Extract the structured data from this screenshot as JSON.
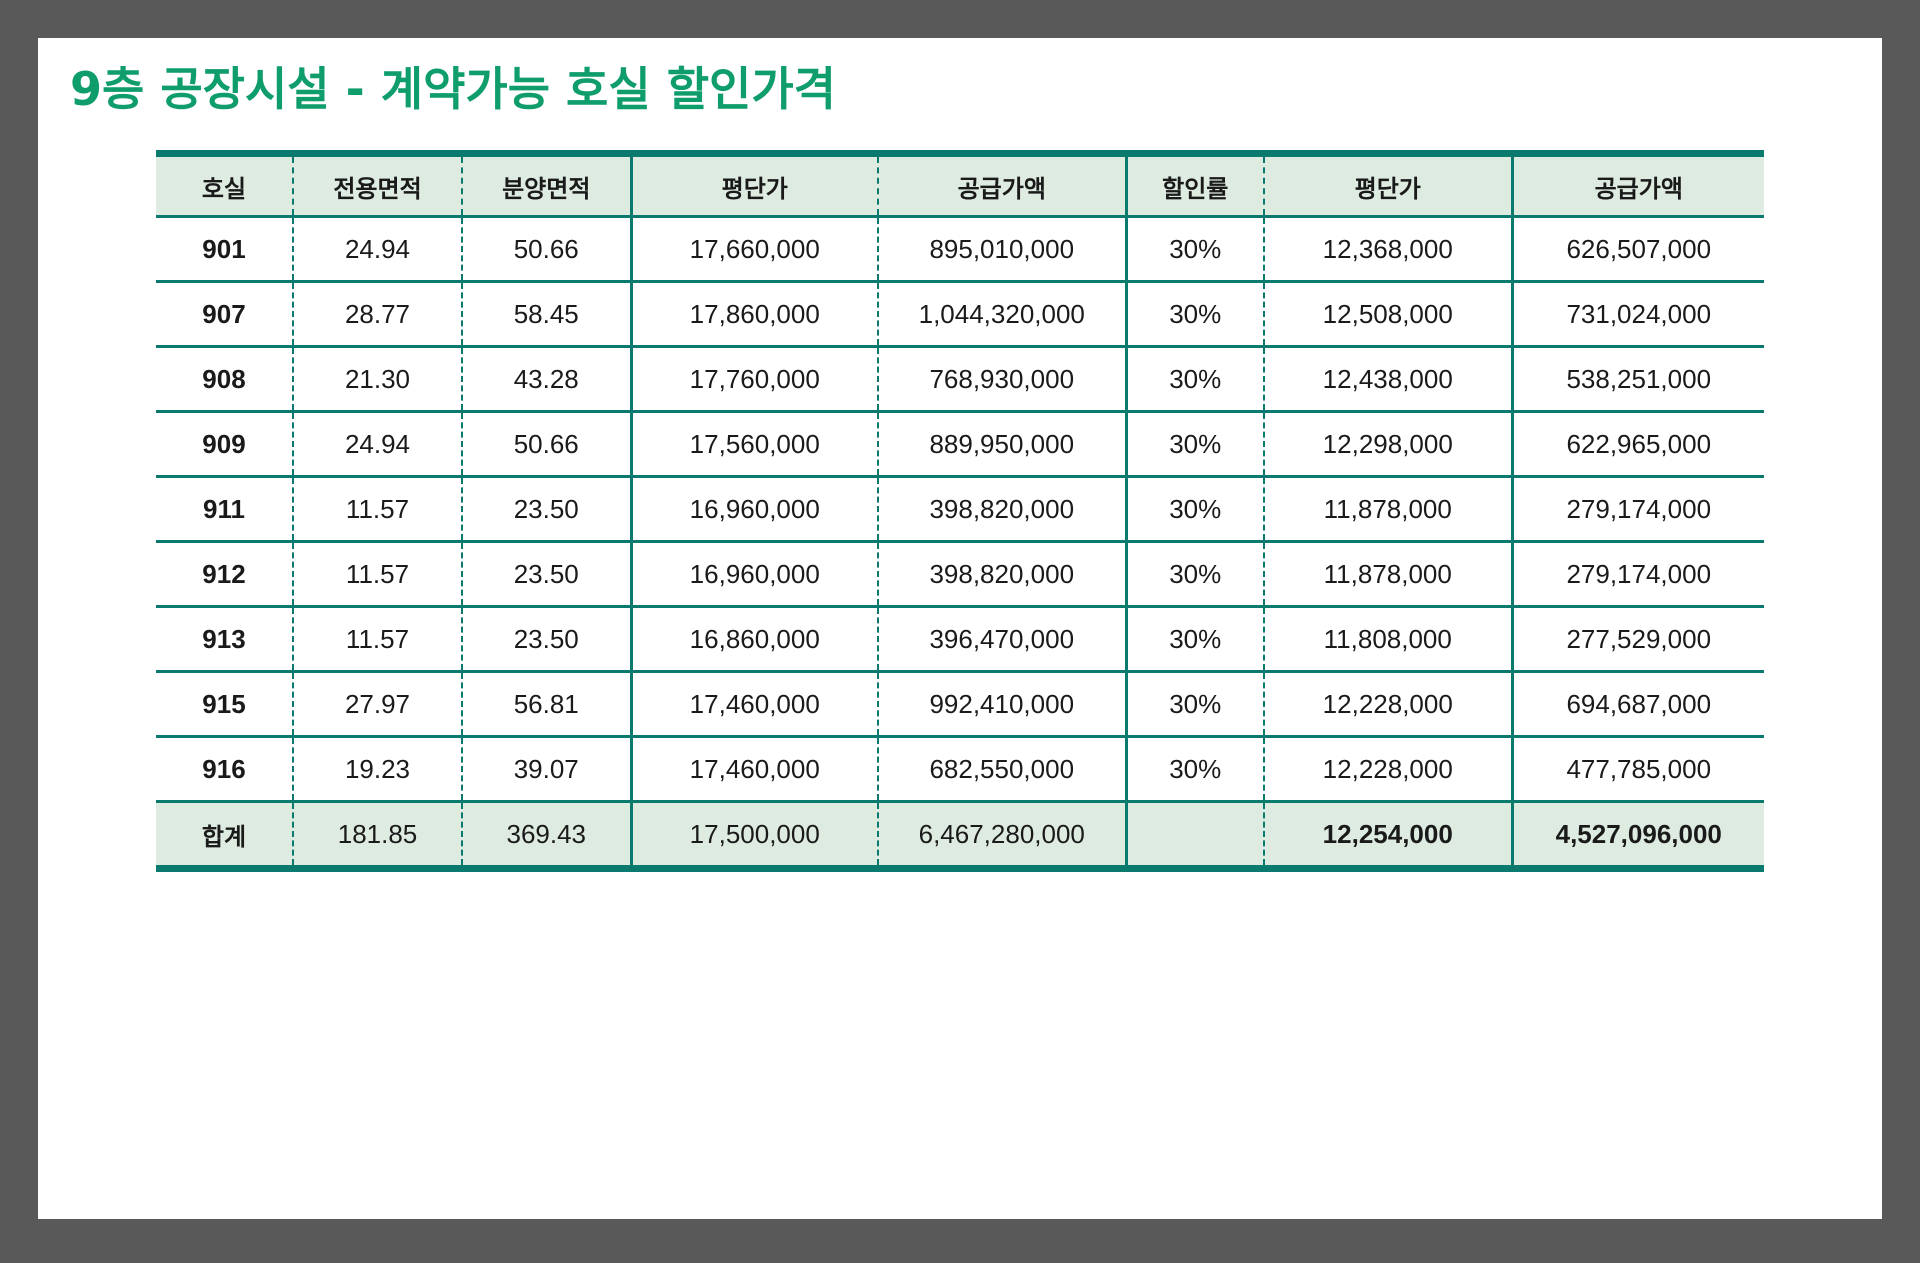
{
  "title": "9층 공장시설 - 계약가능 호실 할인가격",
  "colors": {
    "title": "#0f9d6b",
    "rule": "#0b7a6e",
    "header_bg": "#deebe0",
    "frame": "#595959"
  },
  "table": {
    "columns": [
      "호실",
      "전용면적",
      "분양면적",
      "평단가",
      "공급가액",
      "할인률",
      "평단가",
      "공급가액"
    ],
    "rows": [
      [
        "901",
        "24.94",
        "50.66",
        "17,660,000",
        "895,010,000",
        "30%",
        "12,368,000",
        "626,507,000"
      ],
      [
        "907",
        "28.77",
        "58.45",
        "17,860,000",
        "1,044,320,000",
        "30%",
        "12,508,000",
        "731,024,000"
      ],
      [
        "908",
        "21.30",
        "43.28",
        "17,760,000",
        "768,930,000",
        "30%",
        "12,438,000",
        "538,251,000"
      ],
      [
        "909",
        "24.94",
        "50.66",
        "17,560,000",
        "889,950,000",
        "30%",
        "12,298,000",
        "622,965,000"
      ],
      [
        "911",
        "11.57",
        "23.50",
        "16,960,000",
        "398,820,000",
        "30%",
        "11,878,000",
        "279,174,000"
      ],
      [
        "912",
        "11.57",
        "23.50",
        "16,960,000",
        "398,820,000",
        "30%",
        "11,878,000",
        "279,174,000"
      ],
      [
        "913",
        "11.57",
        "23.50",
        "16,860,000",
        "396,470,000",
        "30%",
        "11,808,000",
        "277,529,000"
      ],
      [
        "915",
        "27.97",
        "56.81",
        "17,460,000",
        "992,410,000",
        "30%",
        "12,228,000",
        "694,687,000"
      ],
      [
        "916",
        "19.23",
        "39.07",
        "17,460,000",
        "682,550,000",
        "30%",
        "12,228,000",
        "477,785,000"
      ]
    ],
    "total": [
      "합계",
      "181.85",
      "369.43",
      "17,500,000",
      "6,467,280,000",
      "",
      "12,254,000",
      "4,527,096,000"
    ]
  }
}
